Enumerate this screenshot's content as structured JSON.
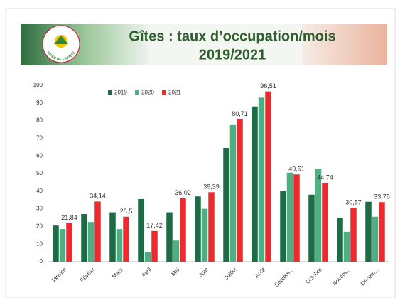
{
  "logo": "GÎTES DE FRANCE",
  "chart_data": {
    "type": "bar",
    "title": "Gîtes : taux d’occupation/mois",
    "subtitle": "2019/2021",
    "categories": [
      "Janvier",
      "Février",
      "Mars",
      "Avril",
      "Mai",
      "Juin",
      "Juillet",
      "Août",
      "Septem...",
      "Octobre",
      "Novem...",
      "Décem..."
    ],
    "series": [
      {
        "name": "2019",
        "color": "#1e6b46",
        "values": [
          20.5,
          27,
          28,
          35.5,
          28,
          37,
          64.5,
          88,
          40,
          38,
          25,
          34
        ]
      },
      {
        "name": "2020",
        "color": "#4fae82",
        "values": [
          18.5,
          22.5,
          18.5,
          5.5,
          12,
          30,
          77.5,
          93,
          50.5,
          52.5,
          17,
          25.5
        ]
      },
      {
        "name": "2021",
        "color": "#ee2a2e",
        "values": [
          21.84,
          34.14,
          25.5,
          17.42,
          36.02,
          39.39,
          80.71,
          96.51,
          49.51,
          44.74,
          30.57,
          33.78
        ],
        "value_labels": [
          "21,84",
          "34,14",
          "25,5",
          "17,42",
          "36,02",
          "39,39",
          "80,71",
          "96,51",
          "49,51",
          "44,74",
          "30,57",
          "33,78"
        ]
      }
    ],
    "ylim": [
      0,
      100
    ],
    "yticks": [
      0,
      10,
      20,
      30,
      40,
      50,
      60,
      70,
      80,
      90,
      100
    ],
    "legend": "top",
    "grid": false
  }
}
